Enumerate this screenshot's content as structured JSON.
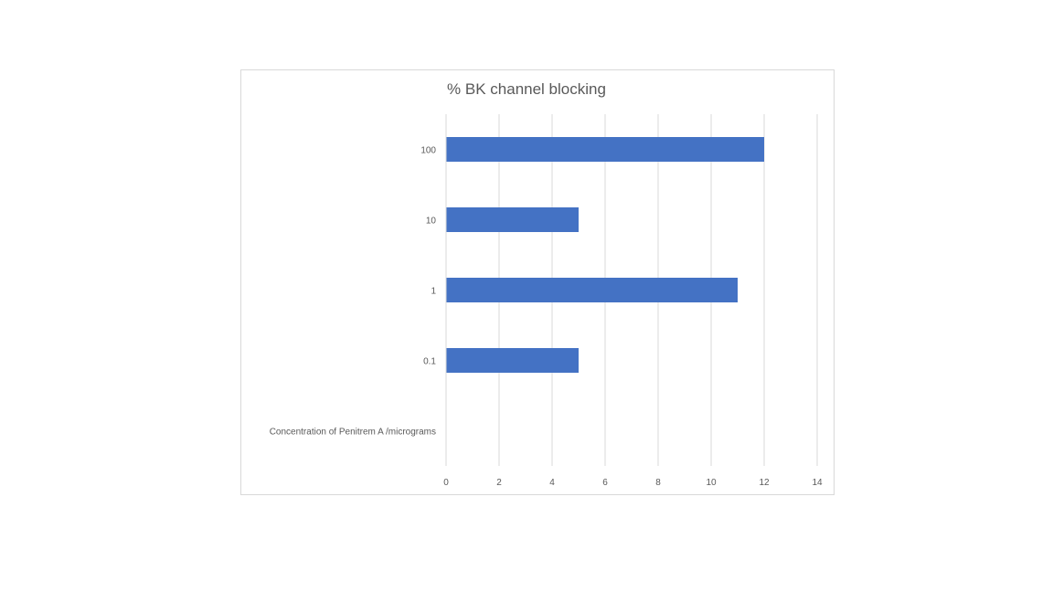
{
  "chart_data": {
    "type": "bar",
    "orientation": "horizontal",
    "title": "% BK channel blocking",
    "categories": [
      "Concentration of Penitrem A /micrograms",
      "0.1",
      "1",
      "10",
      "100"
    ],
    "values": [
      null,
      5,
      11,
      5,
      12
    ],
    "xlim": [
      0,
      14
    ],
    "x_ticks": [
      "0",
      "2",
      "4",
      "6",
      "8",
      "10",
      "12",
      "14"
    ],
    "grid": true,
    "legend": "none",
    "bar_color": "#4472c4",
    "grid_color": "#d9d9d9"
  }
}
